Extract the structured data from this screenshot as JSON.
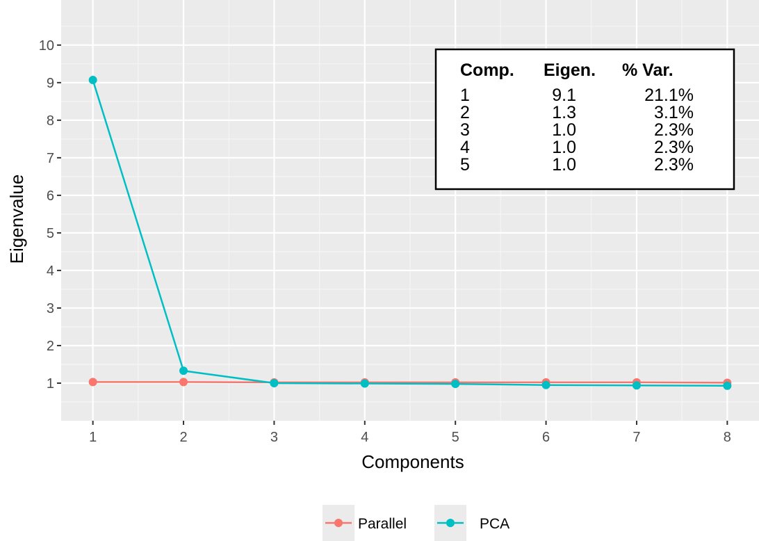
{
  "chart_data": {
    "type": "line",
    "title": "",
    "xlabel": "Components",
    "ylabel": "Eigenvalue",
    "x": [
      1,
      2,
      3,
      4,
      5,
      6,
      7,
      8
    ],
    "x_tick_labels": [
      "1",
      "2",
      "3",
      "4",
      "5",
      "6",
      "7",
      "8"
    ],
    "y_tick_labels": [
      "1",
      "2",
      "3",
      "4",
      "5",
      "6",
      "7",
      "8",
      "9",
      "10"
    ],
    "xlim": [
      0.65,
      8.35
    ],
    "ylim": [
      0,
      11.2
    ],
    "grid": true,
    "series": [
      {
        "name": "Parallel",
        "color": "#F8766D",
        "values": [
          1.03,
          1.03,
          1.02,
          1.02,
          1.02,
          1.02,
          1.02,
          1.01
        ]
      },
      {
        "name": "PCA",
        "color": "#00BFC4",
        "values": [
          9.07,
          1.33,
          1.0,
          0.99,
          0.98,
          0.95,
          0.94,
          0.93
        ]
      }
    ],
    "legend": {
      "position": "bottom",
      "entries": [
        "Parallel",
        "PCA"
      ]
    },
    "table": {
      "headers": [
        "Comp.",
        "Eigen.",
        "% Var."
      ],
      "rows": [
        [
          "1",
          "9.1",
          "21.1%"
        ],
        [
          "2",
          "1.3",
          "3.1%"
        ],
        [
          "3",
          "1.0",
          "2.3%"
        ],
        [
          "4",
          "1.0",
          "2.3%"
        ],
        [
          "5",
          "1.0",
          "2.3%"
        ]
      ]
    }
  }
}
